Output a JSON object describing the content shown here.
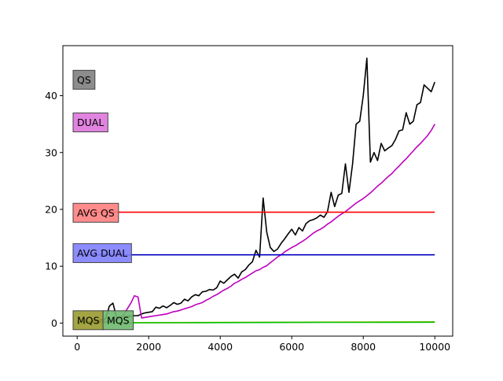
{
  "chart_data": {
    "type": "line",
    "title": "",
    "xlabel": "",
    "ylabel": "",
    "xlim": [
      -400,
      10500
    ],
    "ylim": [
      -2.3,
      48.8
    ],
    "x_ticks": [
      0,
      2000,
      4000,
      6000,
      8000,
      10000
    ],
    "x_tick_labels": [
      "0",
      "2000",
      "4000",
      "6000",
      "8000",
      "10000"
    ],
    "y_ticks": [
      0,
      10,
      20,
      30,
      40
    ],
    "y_tick_labels": [
      "0",
      "10",
      "20",
      "30",
      "40"
    ],
    "grid": false,
    "series": [
      {
        "name": "QS",
        "color": "#000000",
        "x": [
          0,
          100,
          200,
          300,
          400,
          500,
          600,
          700,
          800,
          900,
          1000,
          1100,
          1200,
          1300,
          1400,
          1500,
          1600,
          1700,
          1800,
          1900,
          2000,
          2100,
          2200,
          2300,
          2400,
          2500,
          2600,
          2700,
          2800,
          2900,
          3000,
          3100,
          3200,
          3300,
          3400,
          3500,
          3600,
          3700,
          3800,
          3900,
          4000,
          4100,
          4200,
          4300,
          4400,
          4500,
          4600,
          4700,
          4800,
          4900,
          5000,
          5100,
          5200,
          5300,
          5400,
          5500,
          5600,
          5700,
          5800,
          5900,
          6000,
          6100,
          6200,
          6300,
          6400,
          6500,
          6600,
          6700,
          6800,
          6900,
          7000,
          7100,
          7200,
          7300,
          7400,
          7500,
          7600,
          7700,
          7800,
          7900,
          8000,
          8100,
          8200,
          8300,
          8400,
          8500,
          8600,
          8700,
          8800,
          8900,
          9000,
          9100,
          9200,
          9300,
          9400,
          9500,
          9600,
          9700,
          9800,
          9900,
          10000
        ],
        "values": [
          0.1,
          0.1,
          0.2,
          0.2,
          0.3,
          0.4,
          0.5,
          0.6,
          0.8,
          3.0,
          3.5,
          1.0,
          1.0,
          1.1,
          1.2,
          1.2,
          1.3,
          1.3,
          1.6,
          1.8,
          1.9,
          2.0,
          2.8,
          2.6,
          3.0,
          2.7,
          3.1,
          3.6,
          3.3,
          3.5,
          4.2,
          3.9,
          4.6,
          5.0,
          4.8,
          5.5,
          5.6,
          5.9,
          5.8,
          6.2,
          7.4,
          7.0,
          7.6,
          8.2,
          8.6,
          7.9,
          9.0,
          9.4,
          10.2,
          10.8,
          12.8,
          11.6,
          22.0,
          16.0,
          13.3,
          12.6,
          13.0,
          14.0,
          14.8,
          15.7,
          16.5,
          15.5,
          16.8,
          16.2,
          17.5,
          18.0,
          18.2,
          18.5,
          19.0,
          18.6,
          19.6,
          23.0,
          20.5,
          22.5,
          22.8,
          28.0,
          23.0,
          28.0,
          35.0,
          35.5,
          40.0,
          46.6,
          28.3,
          30.0,
          28.6,
          31.6,
          30.3,
          30.8,
          31.2,
          32.3,
          33.8,
          34.0,
          37.0,
          35.0,
          35.5,
          38.4,
          38.8,
          41.9,
          41.3,
          40.7,
          42.4
        ]
      },
      {
        "name": "DUAL",
        "color": "#bf00bf",
        "x": [
          0,
          100,
          200,
          300,
          400,
          500,
          600,
          700,
          800,
          900,
          1000,
          1100,
          1200,
          1300,
          1400,
          1500,
          1600,
          1700,
          1800,
          1900,
          2000,
          2100,
          2200,
          2300,
          2400,
          2500,
          2600,
          2700,
          2800,
          2900,
          3000,
          3100,
          3200,
          3300,
          3400,
          3500,
          3600,
          3700,
          3800,
          3900,
          4000,
          4100,
          4200,
          4300,
          4400,
          4500,
          4600,
          4700,
          4800,
          4900,
          5000,
          5100,
          5200,
          5300,
          5400,
          5500,
          5600,
          5700,
          5800,
          5900,
          6000,
          6100,
          6200,
          6300,
          6400,
          6500,
          6600,
          6700,
          6800,
          6900,
          7000,
          7100,
          7200,
          7300,
          7400,
          7500,
          7600,
          7700,
          7800,
          7900,
          8000,
          8100,
          8200,
          8300,
          8400,
          8500,
          8600,
          8700,
          8800,
          8900,
          9000,
          9100,
          9200,
          9300,
          9400,
          9500,
          9600,
          9700,
          9800,
          9900,
          10000
        ],
        "values": [
          0.0,
          0.0,
          0.1,
          0.1,
          0.1,
          0.2,
          0.2,
          0.3,
          0.3,
          0.4,
          0.4,
          0.5,
          1.0,
          1.5,
          2.5,
          3.5,
          4.8,
          4.6,
          0.9,
          1.0,
          1.1,
          1.2,
          1.3,
          1.4,
          1.5,
          1.6,
          1.8,
          2.0,
          2.1,
          2.3,
          2.5,
          2.7,
          2.9,
          3.2,
          3.4,
          3.6,
          4.0,
          4.3,
          4.7,
          5.0,
          5.4,
          5.8,
          6.1,
          6.5,
          7.0,
          7.3,
          7.7,
          8.0,
          8.4,
          8.8,
          9.2,
          9.4,
          9.8,
          10.1,
          10.6,
          11.1,
          11.6,
          12.0,
          12.5,
          12.9,
          13.3,
          13.6,
          14.0,
          14.4,
          14.8,
          15.3,
          15.8,
          16.2,
          16.5,
          16.9,
          17.4,
          17.8,
          18.3,
          18.8,
          19.2,
          19.6,
          20.1,
          20.6,
          21.1,
          21.5,
          21.9,
          22.4,
          22.9,
          23.5,
          24.1,
          24.6,
          25.2,
          25.8,
          26.3,
          27.0,
          27.6,
          28.3,
          28.9,
          29.6,
          30.3,
          31.0,
          31.6,
          32.3,
          33.0,
          33.9,
          35.0
        ]
      },
      {
        "name": "AVG QS",
        "color": "#ff0000",
        "x": [
          100,
          10000
        ],
        "values": [
          19.5,
          19.5
        ]
      },
      {
        "name": "AVG DUAL",
        "color": "#0000bf",
        "x": [
          100,
          10000
        ],
        "values": [
          12.0,
          12.0
        ]
      },
      {
        "name": "MQS",
        "color": "#bfbf00",
        "x": [
          0,
          1000,
          2000,
          3000,
          4000,
          5000,
          6000,
          7000,
          8000,
          9000,
          10000
        ],
        "values": [
          0.05,
          0.06,
          0.08,
          0.1,
          0.12,
          0.14,
          0.15,
          0.17,
          0.18,
          0.2,
          0.22
        ]
      },
      {
        "name": "MQS",
        "color": "#00bf00",
        "x": [
          0,
          1000,
          2000,
          3000,
          4000,
          5000,
          6000,
          7000,
          8000,
          9000,
          10000
        ],
        "values": [
          0.03,
          0.04,
          0.05,
          0.06,
          0.08,
          0.1,
          0.11,
          0.12,
          0.13,
          0.14,
          0.15
        ]
      }
    ],
    "labels": [
      {
        "text": "QS",
        "color": "#808080",
        "y": 42.8
      },
      {
        "text": "DUAL",
        "color": "#dd77dd",
        "y": 35.3
      },
      {
        "text": "AVG QS",
        "color": "#ff8080",
        "y": 19.4
      },
      {
        "text": "AVG DUAL",
        "color": "#8080ff",
        "y": 12.3
      },
      {
        "text": "MQS",
        "color": "#9a9a30",
        "y": 0.5
      },
      {
        "text": "MQS",
        "color": "#6fb86f",
        "y": 0.5
      }
    ]
  }
}
